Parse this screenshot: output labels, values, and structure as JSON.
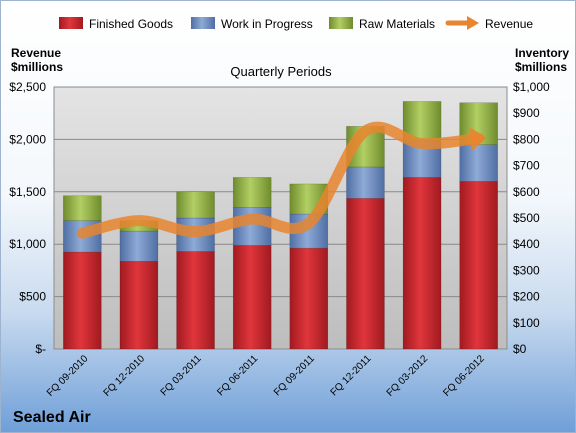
{
  "chart_data": {
    "type": "bar",
    "title": "Quarterly Periods",
    "company": "Sealed Air",
    "categories": [
      "FQ 09-2010",
      "FQ 12-2010",
      "FQ 03-2011",
      "FQ 06-2011",
      "FQ 09-2011",
      "FQ 12-2011",
      "FQ 03-2012",
      "FQ 06-2012"
    ],
    "stacked_series_axis": "right",
    "series": [
      {
        "name": "Finished Goods",
        "kind": "bar",
        "axis": "right",
        "color": "#c0242b",
        "values": [
          370,
          335,
          372,
          395,
          385,
          575,
          655,
          640
        ]
      },
      {
        "name": "Work in Progress",
        "kind": "bar",
        "axis": "right",
        "color": "#6f8ec0",
        "values": [
          120,
          115,
          128,
          145,
          130,
          120,
          140,
          140
        ]
      },
      {
        "name": "Raw Materials",
        "kind": "bar",
        "axis": "right",
        "color": "#98b84a",
        "values": [
          95,
          40,
          100,
          115,
          115,
          155,
          150,
          160
        ]
      },
      {
        "name": "Revenue",
        "kind": "line",
        "axis": "left",
        "color": "#e8852e",
        "values": [
          1105,
          1225,
          1120,
          1240,
          1200,
          2080,
          1960,
          2010
        ]
      }
    ],
    "left_axis": {
      "label_line1": "Revenue",
      "label_line2": "$millions",
      "ylim": [
        0,
        2500
      ],
      "ticks": [
        "$-",
        "$500",
        "$1,000",
        "$1,500",
        "$2,000",
        "$2,500"
      ]
    },
    "right_axis": {
      "label_line1": "Inventory",
      "label_line2": "$millions",
      "ylim": [
        0,
        1000
      ],
      "ticks": [
        "$0",
        "$100",
        "$200",
        "$300",
        "$400",
        "$500",
        "$600",
        "$700",
        "$800",
        "$900",
        "$1,000"
      ]
    },
    "grid": true,
    "legend_position": "top"
  }
}
